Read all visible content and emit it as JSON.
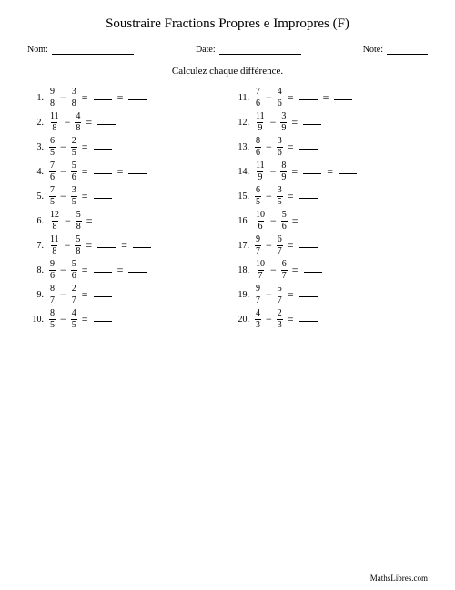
{
  "title": "Soustraire Fractions Propres e Impropres (F)",
  "labels": {
    "name": "Nom:",
    "date": "Date:",
    "note": "Note:"
  },
  "instruction": "Calculez chaque différence.",
  "footer": "MathsLibres.com",
  "symbols": {
    "minus": "−",
    "equals": "="
  },
  "left": [
    {
      "n": "1.",
      "a": {
        "t": "9",
        "b": "8"
      },
      "c": {
        "t": "3",
        "b": "8"
      },
      "blanks": 2
    },
    {
      "n": "2.",
      "a": {
        "t": "11",
        "b": "8"
      },
      "c": {
        "t": "4",
        "b": "8"
      },
      "blanks": 1
    },
    {
      "n": "3.",
      "a": {
        "t": "6",
        "b": "5"
      },
      "c": {
        "t": "2",
        "b": "5"
      },
      "blanks": 1
    },
    {
      "n": "4.",
      "a": {
        "t": "7",
        "b": "6"
      },
      "c": {
        "t": "5",
        "b": "6"
      },
      "blanks": 2
    },
    {
      "n": "5.",
      "a": {
        "t": "7",
        "b": "5"
      },
      "c": {
        "t": "3",
        "b": "5"
      },
      "blanks": 1
    },
    {
      "n": "6.",
      "a": {
        "t": "12",
        "b": "8"
      },
      "c": {
        "t": "5",
        "b": "8"
      },
      "blanks": 1
    },
    {
      "n": "7.",
      "a": {
        "t": "11",
        "b": "8"
      },
      "c": {
        "t": "5",
        "b": "8"
      },
      "blanks": 2
    },
    {
      "n": "8.",
      "a": {
        "t": "9",
        "b": "6"
      },
      "c": {
        "t": "5",
        "b": "6"
      },
      "blanks": 2
    },
    {
      "n": "9.",
      "a": {
        "t": "8",
        "b": "7"
      },
      "c": {
        "t": "2",
        "b": "7"
      },
      "blanks": 1
    },
    {
      "n": "10.",
      "a": {
        "t": "8",
        "b": "5"
      },
      "c": {
        "t": "4",
        "b": "5"
      },
      "blanks": 1
    }
  ],
  "right": [
    {
      "n": "11.",
      "a": {
        "t": "7",
        "b": "6"
      },
      "c": {
        "t": "4",
        "b": "6"
      },
      "blanks": 2
    },
    {
      "n": "12.",
      "a": {
        "t": "11",
        "b": "9"
      },
      "c": {
        "t": "3",
        "b": "9"
      },
      "blanks": 1
    },
    {
      "n": "13.",
      "a": {
        "t": "8",
        "b": "6"
      },
      "c": {
        "t": "3",
        "b": "6"
      },
      "blanks": 1
    },
    {
      "n": "14.",
      "a": {
        "t": "11",
        "b": "9"
      },
      "c": {
        "t": "8",
        "b": "9"
      },
      "blanks": 2
    },
    {
      "n": "15.",
      "a": {
        "t": "6",
        "b": "5"
      },
      "c": {
        "t": "3",
        "b": "5"
      },
      "blanks": 1
    },
    {
      "n": "16.",
      "a": {
        "t": "10",
        "b": "6"
      },
      "c": {
        "t": "5",
        "b": "6"
      },
      "blanks": 1
    },
    {
      "n": "17.",
      "a": {
        "t": "9",
        "b": "7"
      },
      "c": {
        "t": "6",
        "b": "7"
      },
      "blanks": 1
    },
    {
      "n": "18.",
      "a": {
        "t": "10",
        "b": "7"
      },
      "c": {
        "t": "6",
        "b": "7"
      },
      "blanks": 1
    },
    {
      "n": "19.",
      "a": {
        "t": "9",
        "b": "7"
      },
      "c": {
        "t": "5",
        "b": "7"
      },
      "blanks": 1
    },
    {
      "n": "20.",
      "a": {
        "t": "4",
        "b": "3"
      },
      "c": {
        "t": "2",
        "b": "3"
      },
      "blanks": 1
    }
  ]
}
